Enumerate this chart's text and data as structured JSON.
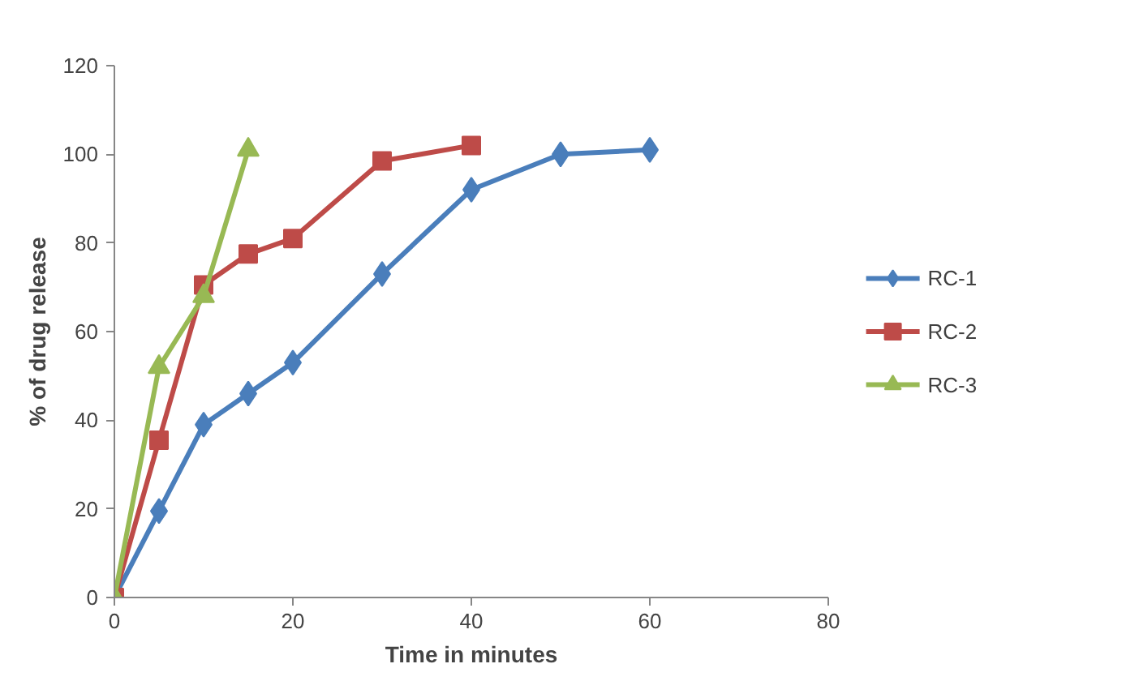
{
  "chart_data": {
    "type": "line",
    "xlabel": "Time in minutes",
    "ylabel": "% of drug release",
    "xlim": [
      0,
      80
    ],
    "xticks": [
      0,
      20,
      40,
      60,
      80
    ],
    "ylim": [
      0,
      120
    ],
    "yticks": [
      0,
      20,
      40,
      60,
      80,
      100,
      120
    ],
    "grid": false,
    "legend": "right",
    "line_style": "solid",
    "series": [
      {
        "name": "RC-1",
        "color": "#4a7ebb",
        "marker": "diamond",
        "x": [
          0,
          5,
          10,
          15,
          20,
          30,
          40,
          50,
          60
        ],
        "values": [
          0,
          19.5,
          39,
          46,
          53,
          73,
          92,
          100,
          101
        ]
      },
      {
        "name": "RC-2",
        "color": "#be4b48",
        "marker": "square",
        "x": [
          0,
          5,
          10,
          15,
          20,
          30,
          40
        ],
        "values": [
          0,
          35.5,
          70.5,
          77.5,
          81,
          98.5,
          102
        ]
      },
      {
        "name": "RC-3",
        "color": "#98b954",
        "marker": "triangle",
        "x": [
          0,
          5,
          10,
          15
        ],
        "values": [
          0,
          52,
          68,
          101
        ]
      }
    ]
  }
}
